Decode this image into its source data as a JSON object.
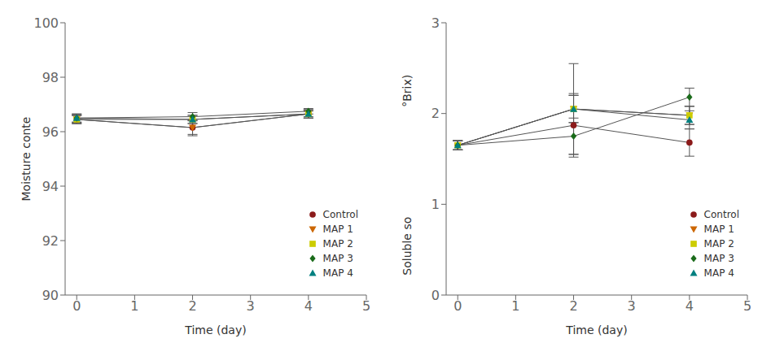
{
  "chart_data": [
    {
      "type": "line",
      "xlabel": "Time (day)",
      "ylabel": "Moisture conte",
      "x": [
        0,
        2,
        4
      ],
      "series": [
        {
          "name": "Control",
          "color": "#8B1A1A",
          "marker": "circle",
          "values": [
            96.45,
            96.15,
            96.65
          ],
          "yerr": [
            0.15,
            0.25,
            0.15
          ]
        },
        {
          "name": "MAP 1",
          "color": "#CC6600",
          "marker": "triangle-down",
          "values": [
            96.45,
            96.15,
            96.65
          ],
          "yerr": [
            0.15,
            0.3,
            0.15
          ]
        },
        {
          "name": "MAP 2",
          "color": "#CCCC00",
          "marker": "square",
          "values": [
            96.45,
            96.45,
            96.65
          ],
          "yerr": [
            0.15,
            0.15,
            0.15
          ]
        },
        {
          "name": "MAP 3",
          "color": "#1A6B1A",
          "marker": "diamond",
          "values": [
            96.5,
            96.55,
            96.75
          ],
          "yerr": [
            0.15,
            0.15,
            0.1
          ]
        },
        {
          "name": "MAP 4",
          "color": "#008080",
          "marker": "triangle-up",
          "values": [
            96.5,
            96.45,
            96.65
          ],
          "yerr": [
            0.15,
            0.15,
            0.1
          ]
        }
      ],
      "xlim": [
        -0.2,
        5
      ],
      "xticks": [
        0,
        1,
        2,
        3,
        4,
        5
      ],
      "ylim": [
        90,
        100
      ],
      "yticks": [
        90,
        92,
        94,
        96,
        98,
        100
      ],
      "legend": "lower right"
    },
    {
      "type": "line",
      "xlabel": "Time (day)",
      "ylabel": "Soluble so",
      "annotations": [
        "°Brix)"
      ],
      "x": [
        0,
        2,
        4
      ],
      "series": [
        {
          "name": "Control",
          "color": "#8B1A1A",
          "marker": "circle",
          "values": [
            1.65,
            1.87,
            1.68
          ],
          "yerr": [
            0.05,
            0.35,
            0.15
          ]
        },
        {
          "name": "MAP 1",
          "color": "#CC6600",
          "marker": "triangle-down",
          "values": [
            1.65,
            2.05,
            1.98
          ],
          "yerr": [
            0.05,
            0.5,
            0.1
          ]
        },
        {
          "name": "MAP 2",
          "color": "#CCCC00",
          "marker": "square",
          "values": [
            1.65,
            2.05,
            1.98
          ],
          "yerr": [
            0.05,
            0.15,
            0.1
          ]
        },
        {
          "name": "MAP 3",
          "color": "#1A6B1A",
          "marker": "diamond",
          "values": [
            1.65,
            1.75,
            2.18
          ],
          "yerr": [
            0.05,
            0.2,
            0.1
          ]
        },
        {
          "name": "MAP 4",
          "color": "#008080",
          "marker": "triangle-up",
          "values": [
            1.65,
            2.05,
            1.93
          ],
          "yerr": [
            0.05,
            0.15,
            0.1
          ]
        }
      ],
      "xlim": [
        -0.2,
        5
      ],
      "xticks": [
        0,
        1,
        2,
        3,
        4,
        5
      ],
      "ylim": [
        0,
        3
      ],
      "yticks": [
        0,
        1,
        2,
        3
      ],
      "legend": "lower right"
    }
  ]
}
